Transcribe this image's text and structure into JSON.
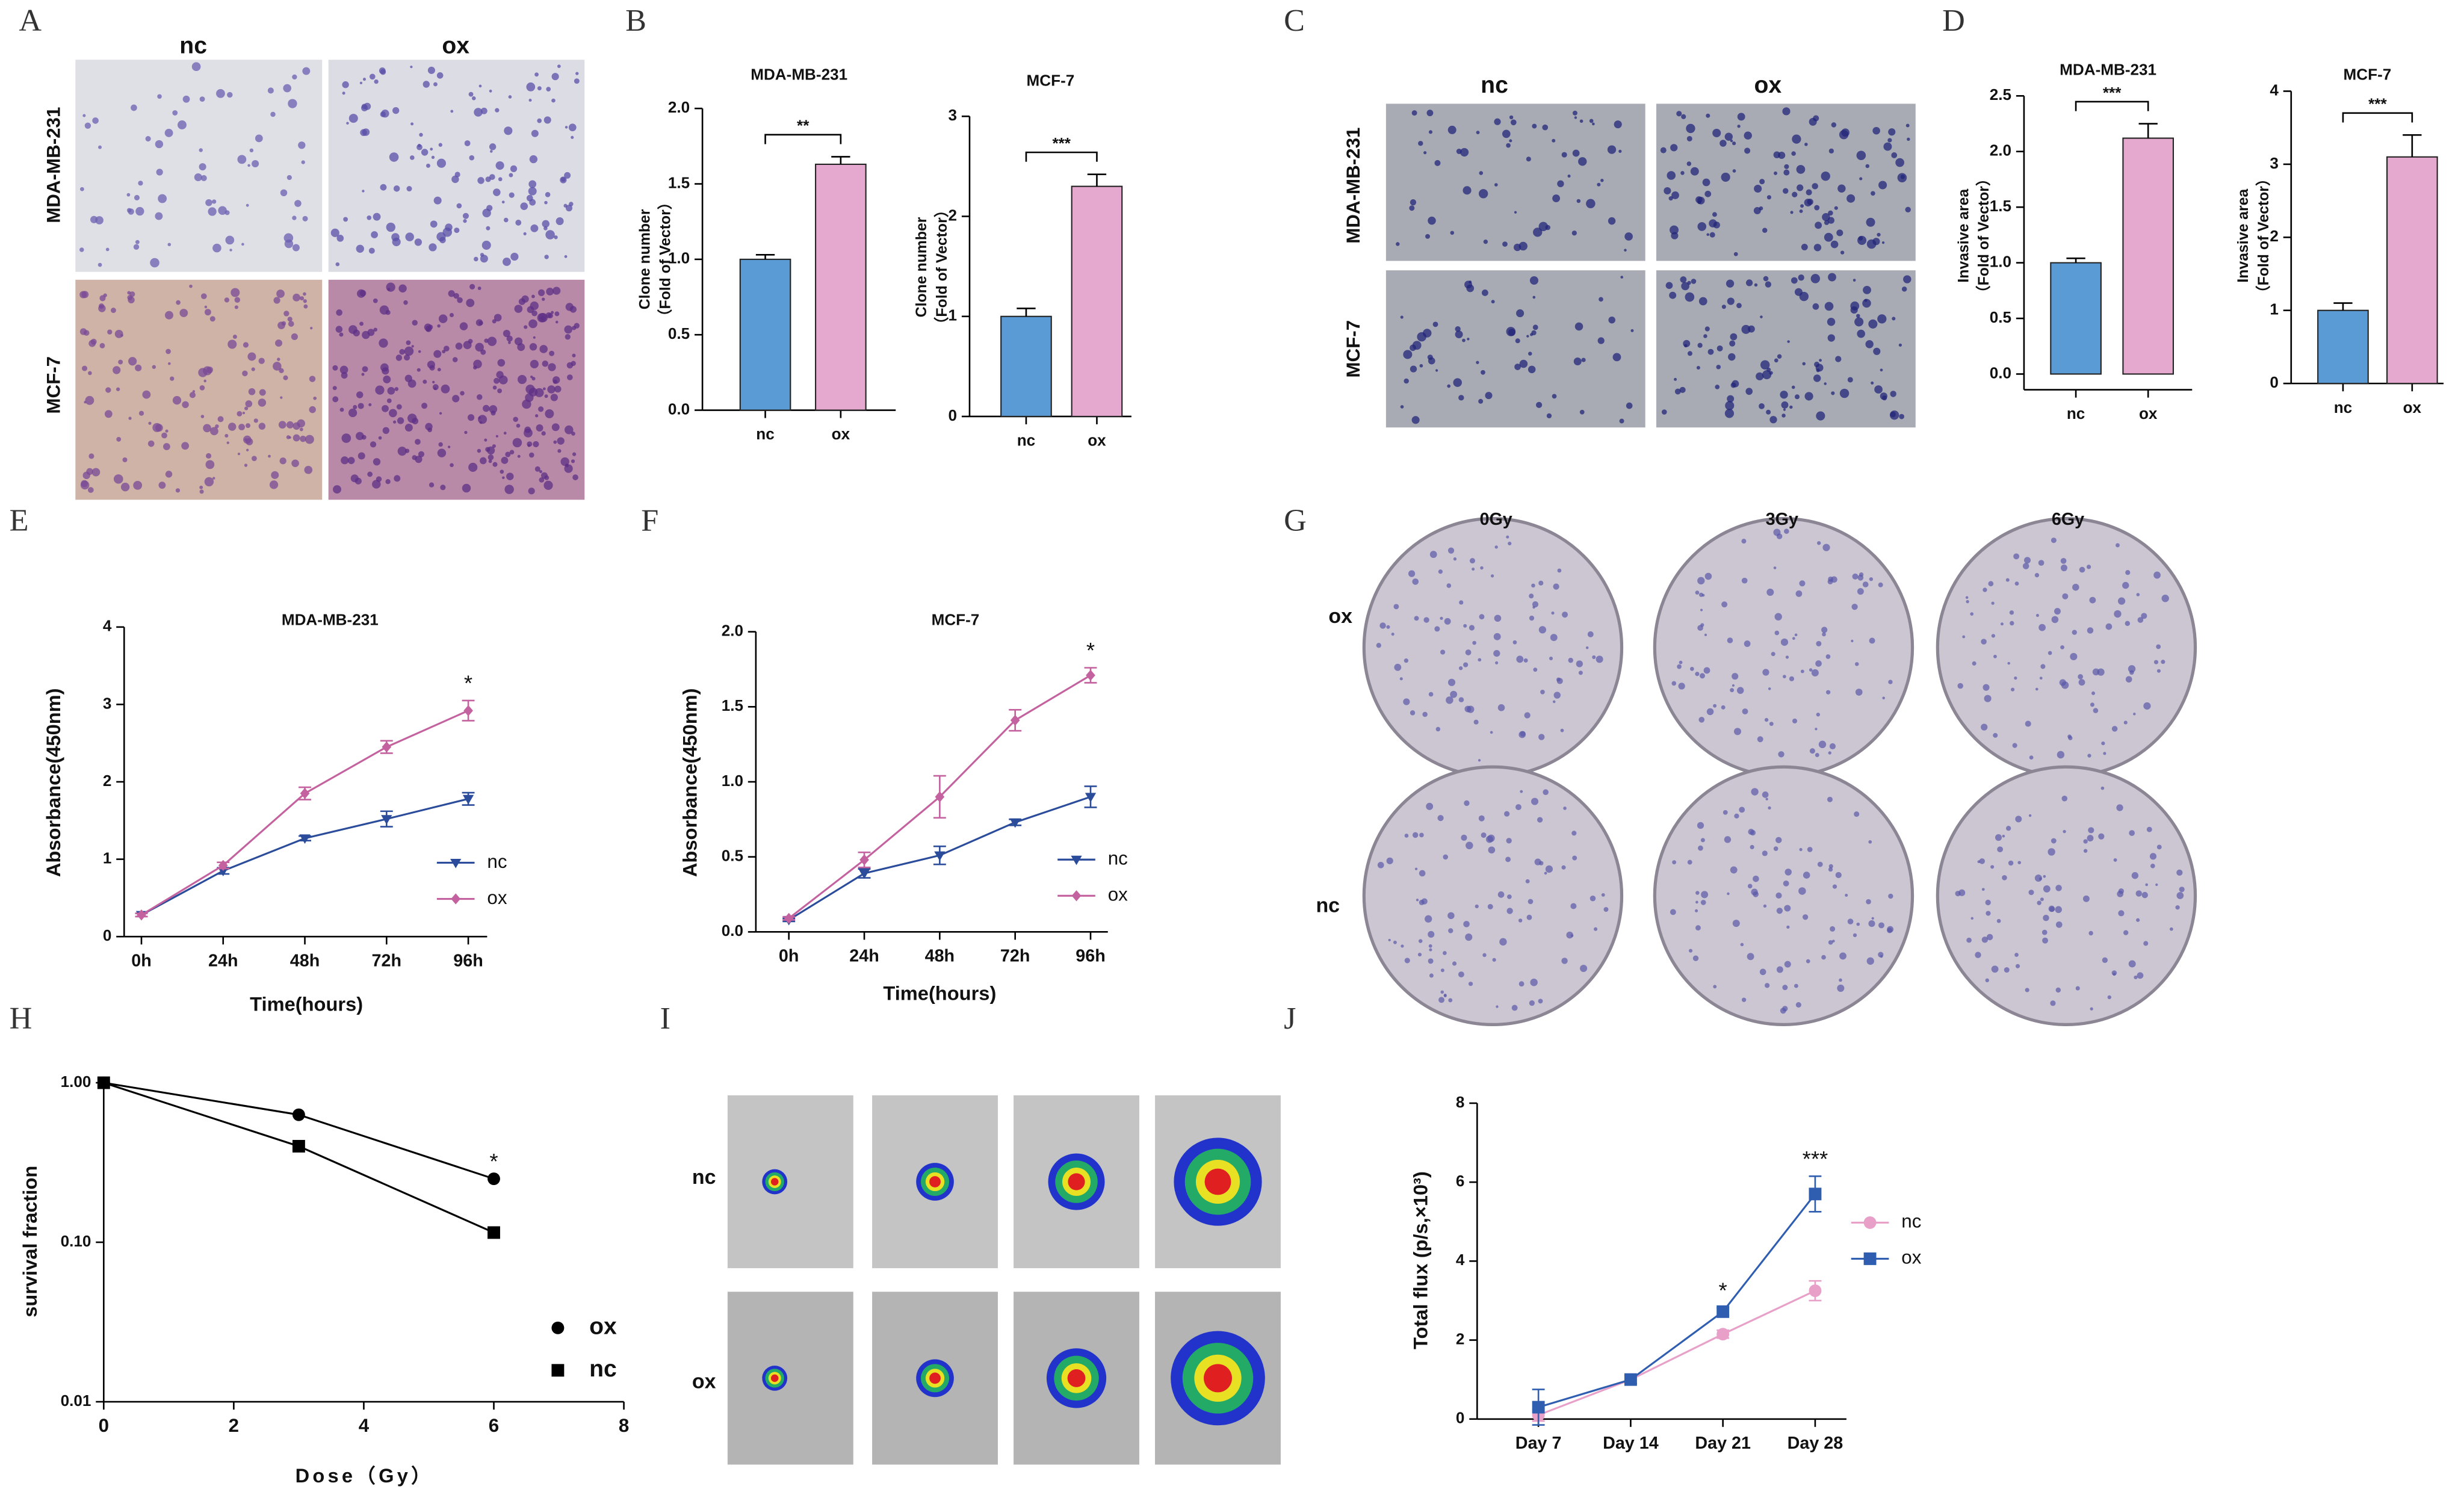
{
  "panel_labels": [
    "A",
    "B",
    "C",
    "D",
    "E",
    "F",
    "G",
    "H",
    "I",
    "J"
  ],
  "image_panels": {
    "A": {
      "columns": [
        "nc",
        "ox"
      ],
      "rows": [
        "MDA-MB-231",
        "MCF-7"
      ]
    },
    "C": {
      "columns": [
        "nc",
        "ox"
      ],
      "rows": [
        "MDA-MB-231",
        "MCF-7"
      ]
    },
    "G": {
      "columns": [
        "0Gy",
        "3Gy",
        "6Gy"
      ],
      "rows": [
        "ox",
        "nc"
      ]
    },
    "I": {
      "rows": [
        "nc",
        "ox"
      ]
    }
  },
  "chart_data": [
    {
      "type": "bar",
      "title": "MDA-MB-231",
      "ylabel": [
        "Clone number",
        "（Fold of Vector）"
      ],
      "categories": [
        "nc",
        "ox"
      ],
      "values": [
        1.0,
        1.63
      ],
      "errors": [
        0.03,
        0.05
      ],
      "colors": [
        "#5b9bd5",
        "#e5a9cf"
      ],
      "ylim": [
        0,
        2
      ],
      "yticks": [
        {
          "value": 0,
          "label": "0.0"
        },
        0.5,
        {
          "value": 1,
          "label": "1.0"
        },
        1.5,
        {
          "value": 2,
          "label": "2.0"
        }
      ],
      "significance": "**"
    },
    {
      "type": "bar",
      "title": "MCF-7",
      "ylabel": [
        "Clone number",
        "（Fold of Vector）"
      ],
      "categories": [
        "nc",
        "ox"
      ],
      "values": [
        1.0,
        2.3
      ],
      "errors": [
        0.08,
        0.12
      ],
      "colors": [
        "#5b9bd5",
        "#e5a9cf"
      ],
      "ylim": [
        0,
        3
      ],
      "yticks": [
        0,
        1,
        2,
        3
      ],
      "significance": "***"
    },
    {
      "type": "bar",
      "title": "MDA-MB-231",
      "ylabel": [
        "Invasive area",
        "（Fold of Vector）"
      ],
      "categories": [
        "nc",
        "ox"
      ],
      "values": [
        1.0,
        2.12
      ],
      "errors": [
        0.04,
        0.13
      ],
      "colors": [
        "#5b9bd5",
        "#e5a9cf"
      ],
      "ylim": [
        0,
        2.5
      ],
      "yticks": [
        {
          "value": 0,
          "label": "0.0"
        },
        0.5,
        {
          "value": 1,
          "label": "1.0"
        },
        1.5,
        {
          "value": 2,
          "label": "2.0"
        },
        2.5
      ],
      "significance": "***"
    },
    {
      "type": "bar",
      "title": "MCF-7",
      "ylabel": [
        "Invasive area",
        "（Fold of Vector）"
      ],
      "categories": [
        "nc",
        "ox"
      ],
      "values": [
        1.0,
        3.1
      ],
      "errors": [
        0.1,
        0.3
      ],
      "colors": [
        "#5b9bd5",
        "#e5a9cf"
      ],
      "ylim": [
        0,
        4
      ],
      "yticks": [
        0,
        1,
        2,
        3,
        4
      ],
      "significance": "***"
    },
    {
      "type": "line",
      "title": "MDA-MB-231",
      "xlabel": "Time(hours)",
      "ylabel": [
        "Absorbance(450nm)"
      ],
      "categories": [
        "0h",
        "24h",
        "48h",
        "72h",
        "96h"
      ],
      "series": [
        {
          "name": "nc",
          "color": "#2b4c9a",
          "marker": "triangle-down",
          "values": [
            0.28,
            0.85,
            1.27,
            1.52,
            1.78
          ],
          "errors": [
            0.02,
            0.04,
            0.03,
            0.1,
            0.08
          ]
        },
        {
          "name": "ox",
          "color": "#c4619f",
          "marker": "diamond",
          "values": [
            0.28,
            0.92,
            1.85,
            2.45,
            2.92
          ],
          "errors": [
            0.02,
            0.04,
            0.08,
            0.08,
            0.13
          ]
        }
      ],
      "ylim": [
        0,
        4
      ],
      "yticks": [
        0,
        1,
        2,
        3,
        4
      ],
      "annotations": [
        {
          "text": "*",
          "x": "96h"
        }
      ]
    },
    {
      "type": "line",
      "title": "MCF-7",
      "xlabel": "Time(hours)",
      "ylabel": [
        "Absorbance(450nm)"
      ],
      "categories": [
        "0h",
        "24h",
        "48h",
        "72h",
        "96h"
      ],
      "series": [
        {
          "name": "nc",
          "color": "#2b4c9a",
          "marker": "triangle-down",
          "values": [
            0.08,
            0.39,
            0.51,
            0.73,
            0.9
          ],
          "errors": [
            0.01,
            0.03,
            0.06,
            0.02,
            0.07
          ]
        },
        {
          "name": "ox",
          "color": "#c4619f",
          "marker": "diamond",
          "values": [
            0.09,
            0.48,
            0.9,
            1.41,
            1.71
          ],
          "errors": [
            0.01,
            0.05,
            0.14,
            0.07,
            0.05
          ]
        }
      ],
      "ylim": [
        0,
        2
      ],
      "yticks": [
        {
          "value": 0,
          "label": "0.0"
        },
        0.5,
        {
          "value": 1,
          "label": "1.0"
        },
        1.5,
        {
          "value": 2,
          "label": "2.0"
        }
      ],
      "annotations": [
        {
          "text": "*",
          "x": "96h"
        }
      ]
    },
    {
      "type": "scatter",
      "xlabel": "Dose（Gy）",
      "ylabel": [
        "survival fraction"
      ],
      "x": [
        0,
        3,
        6
      ],
      "series": [
        {
          "name": "ox",
          "color": "#000000",
          "marker": "circle",
          "values": [
            1.0,
            0.63,
            0.25
          ]
        },
        {
          "name": "nc",
          "color": "#000000",
          "marker": "square",
          "values": [
            1.0,
            0.4,
            0.115
          ]
        }
      ],
      "xlim": [
        0,
        8
      ],
      "xticks": [
        0,
        2,
        4,
        6,
        8
      ],
      "ylim": [
        0.01,
        1
      ],
      "yscale": "log",
      "yticks": [
        0.01,
        {
          "value": 0.1,
          "label": "0.10"
        },
        {
          "value": 1,
          "label": "1.00"
        }
      ],
      "annotations": [
        {
          "text": "*",
          "x": 6
        }
      ]
    },
    {
      "type": "line",
      "ylabel": [
        "Total flux (p/s,×10³)"
      ],
      "categories": [
        "Day 7",
        "Day 14",
        "Day 21",
        "Day 28"
      ],
      "series": [
        {
          "name": "nc",
          "color": "#e8a0c8",
          "marker": "circle",
          "values": [
            0.1,
            1.0,
            2.15,
            3.25
          ],
          "errors": [
            0.15,
            0.1,
            0.1,
            0.25
          ]
        },
        {
          "name": "ox",
          "color": "#2f5eb0",
          "marker": "square",
          "values": [
            0.3,
            1.0,
            2.72,
            5.7
          ],
          "errors": [
            0.45,
            0.1,
            0.1,
            0.45
          ]
        }
      ],
      "ylim": [
        0,
        8
      ],
      "yticks": [
        0,
        2,
        4,
        6,
        8
      ],
      "annotations": [
        {
          "text": "*",
          "x": "Day 21"
        },
        {
          "text": "***",
          "x": "Day 28"
        }
      ]
    }
  ]
}
